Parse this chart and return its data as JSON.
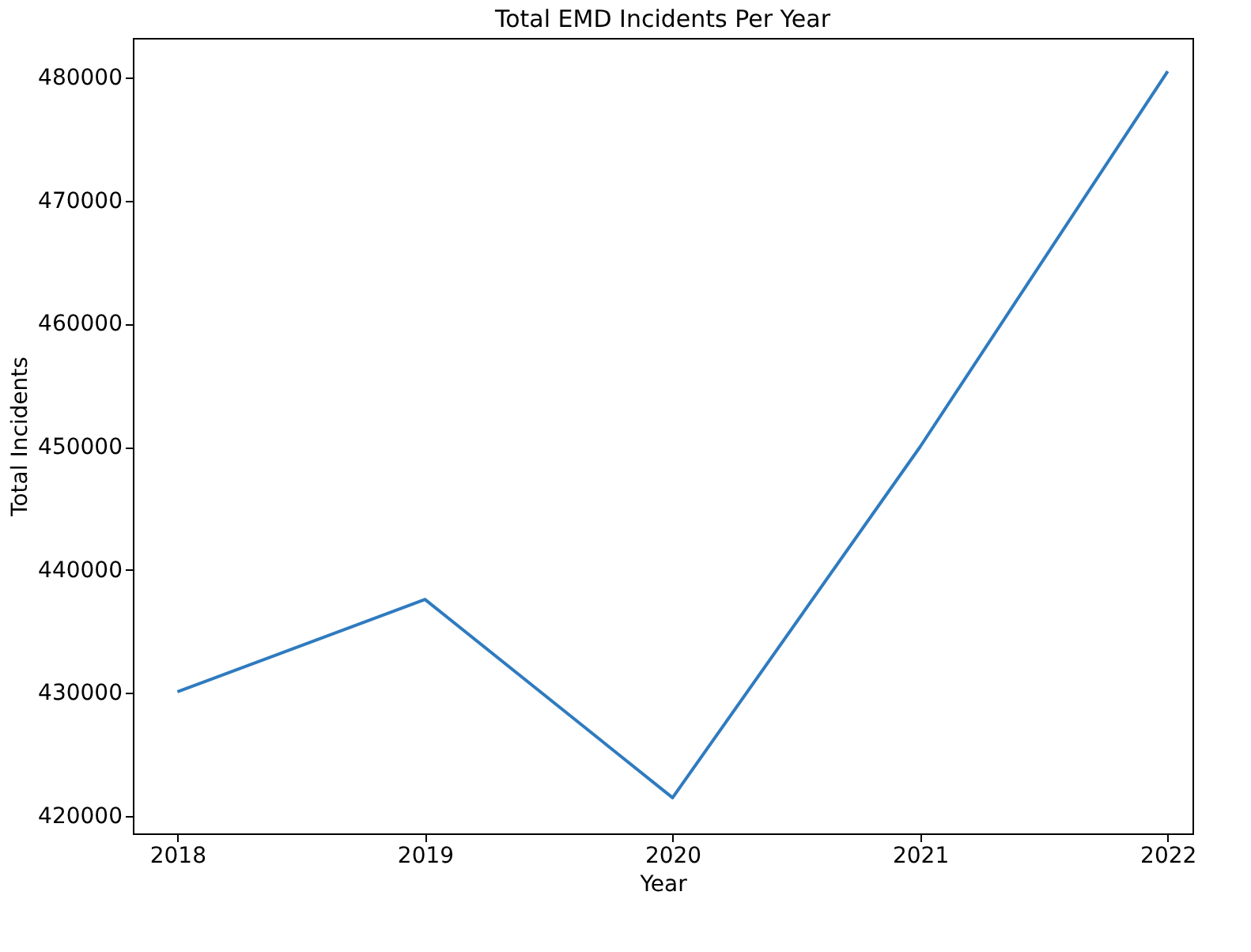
{
  "chart_data": {
    "type": "line",
    "title": "Total EMD Incidents Per Year",
    "xlabel": "Year",
    "ylabel": "Total Incidents",
    "x": [
      2018,
      2019,
      2020,
      2021,
      2022
    ],
    "series": [
      {
        "color": "#2f7bbf",
        "values": [
          430100,
          437600,
          421500,
          450000,
          480500
        ]
      }
    ],
    "xlim": [
      2017.82,
      2022.1
    ],
    "xticks": [
      2018,
      2019,
      2020,
      2021,
      2022
    ],
    "ylim": [
      418600,
      483200
    ],
    "yticks": [
      420000,
      430000,
      440000,
      450000,
      460000,
      470000,
      480000
    ],
    "grid": false,
    "legend": false,
    "marker": "none",
    "line_style": "solid"
  }
}
